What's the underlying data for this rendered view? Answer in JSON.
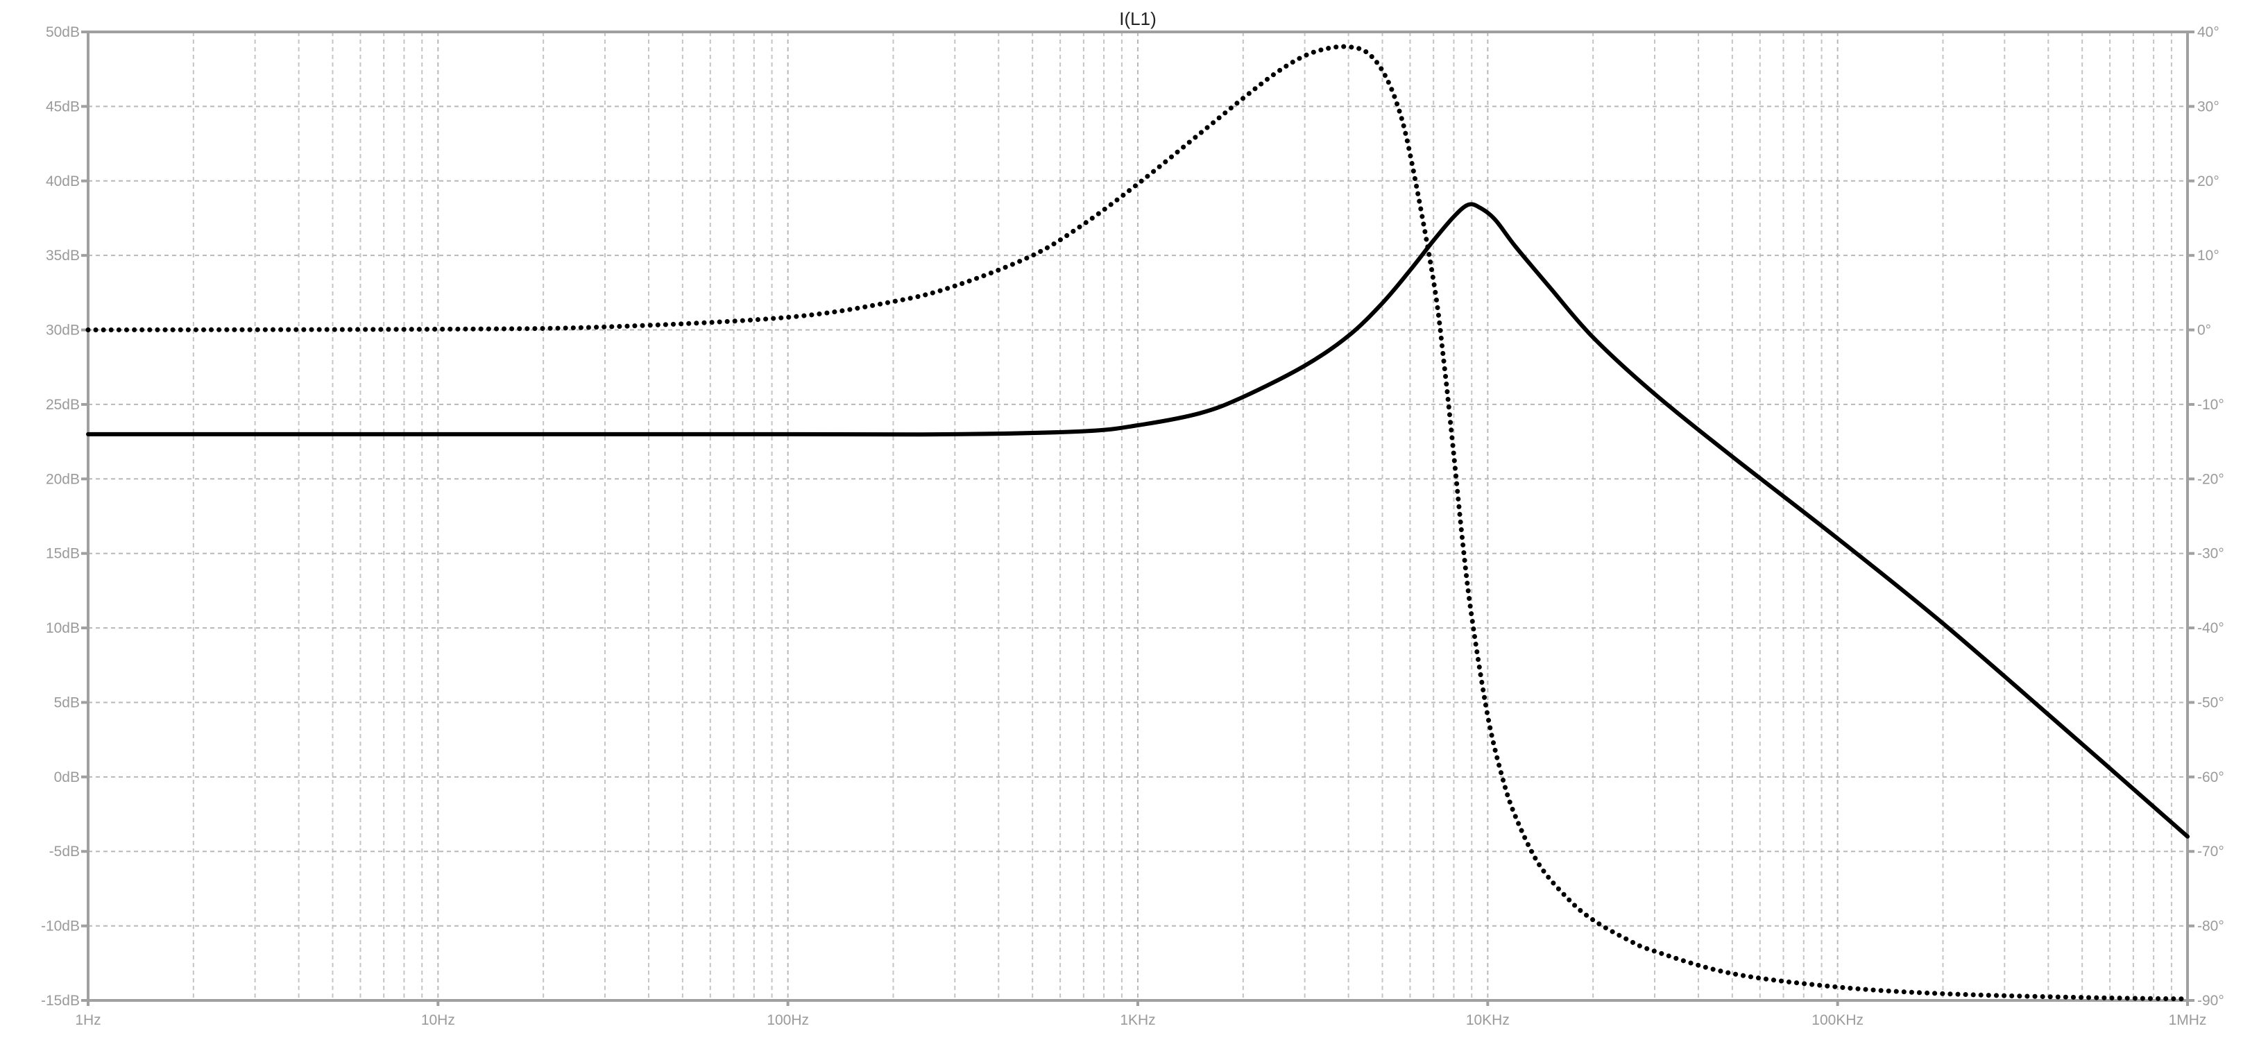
{
  "chart_data": {
    "type": "line",
    "title": "I(L1)",
    "x_scale": "log",
    "xlim": [
      1,
      1000000
    ],
    "x_ticks": [
      1,
      10,
      100,
      1000,
      10000,
      100000,
      1000000
    ],
    "x_tick_labels": [
      "1Hz",
      "10Hz",
      "100Hz",
      "1KHz",
      "10KHz",
      "100KHz",
      "1MHz"
    ],
    "ylim_left": [
      -15,
      50
    ],
    "y_left_ticks": [
      50,
      45,
      40,
      35,
      30,
      25,
      20,
      15,
      10,
      5,
      0,
      -5,
      -10,
      -15
    ],
    "y_left_tick_labels": [
      "50dB",
      "45dB",
      "40dB",
      "35dB",
      "30dB",
      "25dB",
      "20dB",
      "15dB",
      "10dB",
      "5dB",
      "0dB",
      "-5dB",
      "-10dB",
      "-15dB"
    ],
    "ylim_right": [
      -90,
      40
    ],
    "y_right_ticks": [
      40,
      30,
      20,
      10,
      0,
      -10,
      -20,
      -30,
      -40,
      -50,
      -60,
      -70,
      -80,
      -90
    ],
    "y_right_tick_labels": [
      "40°",
      "30°",
      "20°",
      "10°",
      "0°",
      "-10°",
      "-20°",
      "-30°",
      "-40°",
      "-50°",
      "-60°",
      "-70°",
      "-80°",
      "-90°"
    ],
    "grid": true,
    "series": [
      {
        "style": "solid",
        "axis": "left",
        "x": [
          1,
          10,
          100,
          300,
          700,
          1000,
          1500,
          2000,
          3000,
          4000,
          5000,
          6000,
          7000,
          8000,
          8800,
          9500,
          10500,
          12000,
          15000,
          20000,
          30000,
          50000,
          100000,
          200000,
          500000,
          1000000
        ],
        "y": [
          23,
          23,
          23,
          23,
          23.2,
          23.6,
          24.4,
          25.5,
          27.6,
          29.6,
          31.8,
          34.0,
          36.0,
          37.6,
          38.4,
          38.2,
          37.4,
          35.6,
          32.9,
          29.5,
          25.7,
          21.5,
          16.0,
          10.3,
          2.2,
          -4.0
        ]
      },
      {
        "style": "dotted",
        "axis": "right",
        "x": [
          1,
          10,
          30,
          100,
          200,
          300,
          500,
          700,
          1000,
          1500,
          2000,
          2500,
          3000,
          3500,
          4000,
          4500,
          5000,
          5500,
          6000,
          7000,
          7500,
          8000,
          8500,
          9000,
          10000,
          11000,
          12000,
          14000,
          17000,
          20000,
          25000,
          30000,
          50000,
          100000,
          200000,
          500000,
          1000000
        ],
        "y": [
          0,
          0.1,
          0.4,
          1.7,
          3.8,
          5.9,
          10,
          14.2,
          19.6,
          26.3,
          31.1,
          34.6,
          36.8,
          37.8,
          38,
          37.3,
          34.8,
          30.4,
          23.6,
          6.6,
          -4.4,
          -16.8,
          -28.9,
          -38.5,
          -51.8,
          -60,
          -65.3,
          -71.7,
          -76.4,
          -79.2,
          -81.8,
          -83.4,
          -86.4,
          -88.2,
          -89.1,
          -89.6,
          -89.8
        ]
      }
    ]
  }
}
